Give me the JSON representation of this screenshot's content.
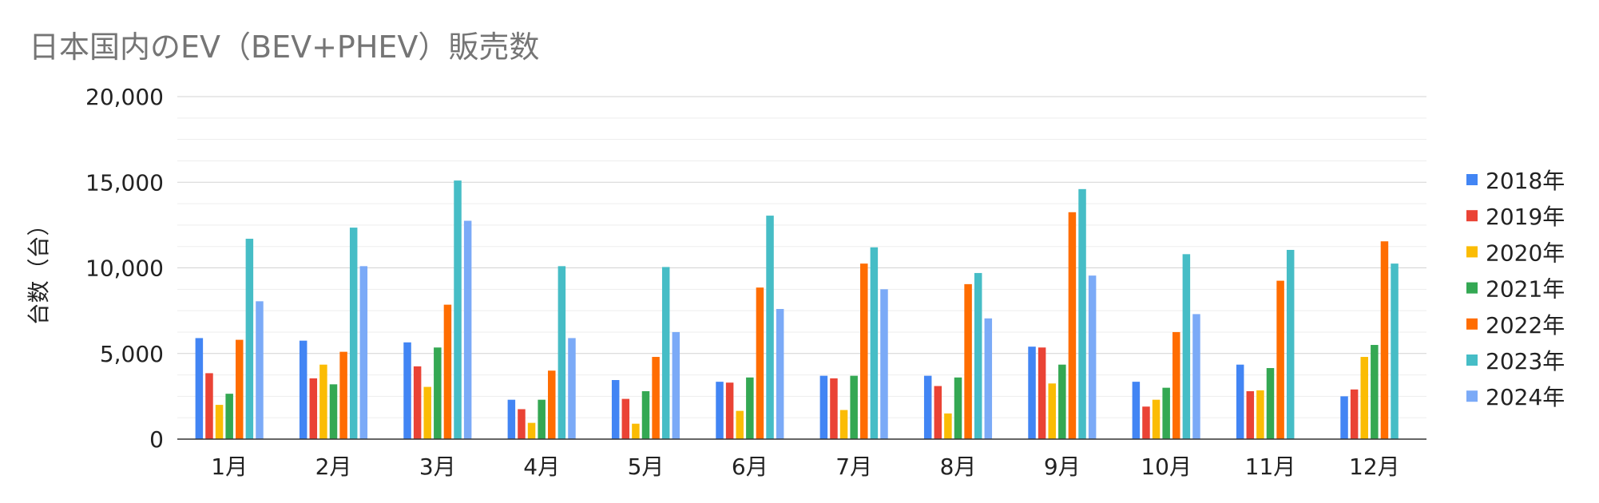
{
  "chart_data": {
    "type": "bar",
    "title": "日本国内のEV（BEV+PHEV）販売数",
    "xlabel": "",
    "ylabel": "台数（台）",
    "ylim": [
      0,
      20000
    ],
    "yticks": [
      "0",
      "5,000",
      "10,000",
      "15,000",
      "20,000"
    ],
    "grid": true,
    "legend_position": "right",
    "categories": [
      "1月",
      "2月",
      "3月",
      "4月",
      "5月",
      "6月",
      "7月",
      "8月",
      "9月",
      "10月",
      "11月",
      "12月"
    ],
    "series": [
      {
        "name": "2018年",
        "color": "#4285F4",
        "values": [
          5900,
          5750,
          5650,
          2300,
          3450,
          3350,
          3700,
          3700,
          5400,
          3350,
          4350,
          2500
        ]
      },
      {
        "name": "2019年",
        "color": "#EA4335",
        "values": [
          3850,
          3550,
          4250,
          1750,
          2350,
          3300,
          3550,
          3100,
          5350,
          1900,
          2800,
          2900
        ]
      },
      {
        "name": "2020年",
        "color": "#FBBC04",
        "values": [
          2000,
          4350,
          3050,
          950,
          900,
          1650,
          1700,
          1500,
          3250,
          2300,
          2850,
          4800
        ]
      },
      {
        "name": "2021年",
        "color": "#34A853",
        "values": [
          2650,
          3200,
          5350,
          2300,
          2800,
          3600,
          3700,
          3600,
          4350,
          3000,
          4150,
          5500
        ]
      },
      {
        "name": "2022年",
        "color": "#FF6D01",
        "values": [
          5800,
          5100,
          7850,
          4000,
          4800,
          8850,
          10250,
          9050,
          13250,
          6250,
          9250,
          11550
        ]
      },
      {
        "name": "2023年",
        "color": "#46BDC6",
        "values": [
          11700,
          12350,
          15100,
          10100,
          10050,
          13050,
          11200,
          9700,
          14600,
          10800,
          11050,
          10250
        ]
      },
      {
        "name": "2024年",
        "color": "#7BAAF7",
        "values": [
          8050,
          10100,
          12750,
          5900,
          6250,
          7600,
          8750,
          7050,
          9550,
          7300,
          null,
          null
        ]
      }
    ]
  }
}
